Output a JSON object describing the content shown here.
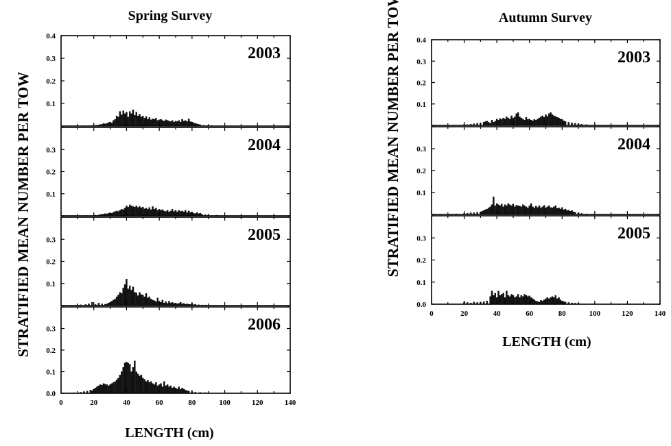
{
  "figure": {
    "ylabel": "STRATIFIED MEAN NUMBER PER TOW",
    "xlabel": "LENGTH (cm)"
  },
  "chart_data": [
    {
      "type": "bar",
      "title": "Spring Survey",
      "xlabel": "LENGTH (cm)",
      "ylabel": "STRATIFIED MEAN NUMBER PER TOW",
      "xlim": [
        0,
        140
      ],
      "ylim": [
        0,
        0.4
      ],
      "xticks": [
        "0",
        "20",
        "40",
        "60",
        "80",
        "100",
        "120",
        "140"
      ],
      "yticks": [
        "0.0",
        "0.1",
        "0.2",
        "0.3",
        "0.4"
      ],
      "panels": [
        {
          "year": "2003",
          "x": [
            10,
            14,
            17,
            19,
            21,
            22,
            23,
            24,
            25,
            26,
            27,
            28,
            29,
            30,
            31,
            32,
            33,
            34,
            35,
            36,
            37,
            38,
            39,
            40,
            41,
            42,
            43,
            44,
            45,
            46,
            47,
            48,
            49,
            50,
            51,
            52,
            53,
            54,
            55,
            56,
            57,
            58,
            59,
            60,
            61,
            62,
            63,
            64,
            65,
            66,
            67,
            68,
            69,
            70,
            71,
            72,
            73,
            74,
            75,
            76,
            77,
            78,
            79,
            80,
            81,
            82,
            83,
            84,
            85,
            87,
            89,
            92
          ],
          "values": [
            0.002,
            0.002,
            0.002,
            0.003,
            0.004,
            0.004,
            0.005,
            0.007,
            0.008,
            0.012,
            0.01,
            0.012,
            0.016,
            0.018,
            0.014,
            0.025,
            0.03,
            0.045,
            0.04,
            0.065,
            0.05,
            0.068,
            0.055,
            0.062,
            0.04,
            0.065,
            0.055,
            0.072,
            0.048,
            0.062,
            0.045,
            0.052,
            0.04,
            0.045,
            0.035,
            0.042,
            0.03,
            0.038,
            0.028,
            0.032,
            0.03,
            0.035,
            0.025,
            0.028,
            0.03,
            0.025,
            0.022,
            0.028,
            0.025,
            0.022,
            0.02,
            0.025,
            0.018,
            0.022,
            0.02,
            0.025,
            0.018,
            0.03,
            0.022,
            0.025,
            0.02,
            0.032,
            0.02,
            0.018,
            0.015,
            0.012,
            0.01,
            0.008,
            0.006,
            0.004,
            0.003,
            0.002
          ]
        },
        {
          "year": "2004",
          "x": [
            15,
            21,
            23,
            24,
            25,
            26,
            27,
            28,
            29,
            30,
            31,
            32,
            33,
            34,
            35,
            36,
            37,
            38,
            39,
            40,
            41,
            42,
            43,
            44,
            45,
            46,
            47,
            48,
            49,
            50,
            51,
            52,
            53,
            54,
            55,
            56,
            57,
            58,
            59,
            60,
            61,
            62,
            63,
            64,
            65,
            66,
            67,
            68,
            69,
            70,
            71,
            72,
            73,
            74,
            75,
            76,
            77,
            78,
            79,
            80,
            81,
            82,
            83,
            84,
            85,
            86,
            88,
            90,
            95
          ],
          "values": [
            0.002,
            0.003,
            0.004,
            0.006,
            0.007,
            0.008,
            0.01,
            0.009,
            0.012,
            0.014,
            0.012,
            0.016,
            0.02,
            0.022,
            0.02,
            0.025,
            0.03,
            0.028,
            0.035,
            0.045,
            0.04,
            0.05,
            0.045,
            0.042,
            0.04,
            0.045,
            0.038,
            0.042,
            0.036,
            0.04,
            0.032,
            0.035,
            0.03,
            0.038,
            0.028,
            0.042,
            0.03,
            0.035,
            0.025,
            0.03,
            0.025,
            0.028,
            0.022,
            0.02,
            0.025,
            0.018,
            0.022,
            0.03,
            0.02,
            0.025,
            0.018,
            0.025,
            0.02,
            0.022,
            0.018,
            0.025,
            0.015,
            0.022,
            0.015,
            0.018,
            0.012,
            0.01,
            0.015,
            0.01,
            0.012,
            0.008,
            0.005,
            0.004,
            0.003
          ]
        },
        {
          "year": "2005",
          "x": [
            6,
            10,
            12,
            15,
            17,
            19,
            21,
            23,
            25,
            27,
            28,
            29,
            30,
            31,
            32,
            33,
            34,
            35,
            36,
            37,
            38,
            39,
            40,
            41,
            42,
            43,
            44,
            45,
            46,
            47,
            48,
            49,
            50,
            51,
            52,
            53,
            54,
            55,
            56,
            57,
            58,
            59,
            60,
            61,
            62,
            63,
            64,
            65,
            66,
            67,
            68,
            69,
            70,
            71,
            72,
            73,
            74,
            75,
            76,
            77,
            78,
            79,
            80,
            81,
            82,
            84,
            86,
            88,
            90,
            95
          ],
          "values": [
            0.002,
            0.003,
            0.004,
            0.005,
            0.008,
            0.015,
            0.005,
            0.012,
            0.008,
            0.006,
            0.008,
            0.012,
            0.015,
            0.02,
            0.025,
            0.03,
            0.04,
            0.048,
            0.06,
            0.055,
            0.08,
            0.095,
            0.12,
            0.075,
            0.09,
            0.07,
            0.085,
            0.06,
            0.058,
            0.045,
            0.06,
            0.05,
            0.048,
            0.04,
            0.055,
            0.035,
            0.04,
            0.03,
            0.025,
            0.022,
            0.018,
            0.035,
            0.02,
            0.015,
            0.025,
            0.012,
            0.018,
            0.01,
            0.02,
            0.012,
            0.015,
            0.01,
            0.012,
            0.008,
            0.01,
            0.015,
            0.008,
            0.01,
            0.006,
            0.008,
            0.006,
            0.005,
            0.01,
            0.004,
            0.006,
            0.004,
            0.003,
            0.003,
            0.002,
            0.002
          ]
        },
        {
          "year": "2006",
          "x": [
            5,
            8,
            12,
            14,
            16,
            18,
            19,
            20,
            21,
            22,
            23,
            24,
            25,
            26,
            27,
            28,
            29,
            30,
            31,
            32,
            33,
            34,
            35,
            36,
            37,
            38,
            39,
            40,
            41,
            42,
            43,
            44,
            45,
            46,
            47,
            48,
            49,
            50,
            51,
            52,
            53,
            54,
            55,
            56,
            57,
            58,
            59,
            60,
            61,
            62,
            63,
            64,
            65,
            66,
            67,
            68,
            69,
            70,
            71,
            72,
            73,
            74,
            75,
            76,
            77,
            78,
            80,
            82,
            85,
            88
          ],
          "values": [
            0.002,
            0.003,
            0.005,
            0.008,
            0.01,
            0.015,
            0.012,
            0.02,
            0.025,
            0.03,
            0.035,
            0.04,
            0.038,
            0.045,
            0.042,
            0.04,
            0.035,
            0.04,
            0.045,
            0.05,
            0.055,
            0.062,
            0.07,
            0.085,
            0.1,
            0.12,
            0.14,
            0.145,
            0.14,
            0.135,
            0.1,
            0.12,
            0.15,
            0.1,
            0.09,
            0.08,
            0.085,
            0.07,
            0.065,
            0.055,
            0.06,
            0.05,
            0.055,
            0.045,
            0.04,
            0.05,
            0.035,
            0.04,
            0.045,
            0.03,
            0.055,
            0.035,
            0.04,
            0.03,
            0.035,
            0.025,
            0.03,
            0.025,
            0.02,
            0.03,
            0.018,
            0.025,
            0.02,
            0.015,
            0.012,
            0.01,
            0.008,
            0.005,
            0.004,
            0.003
          ]
        }
      ]
    },
    {
      "type": "bar",
      "title": "Autumn Survey",
      "xlabel": "LENGTH (cm)",
      "ylabel": "STRATIFIED MEAN NUMBER PER TOW",
      "xlim": [
        0,
        140
      ],
      "ylim": [
        0,
        0.4
      ],
      "xticks": [
        "0",
        "20",
        "40",
        "60",
        "80",
        "100",
        "120",
        "140"
      ],
      "yticks": [
        "0.0",
        "0.1",
        "0.2",
        "0.3",
        "0.4"
      ],
      "panels": [
        {
          "year": "2003",
          "x": [
            20,
            22,
            24,
            26,
            28,
            30,
            32,
            33,
            34,
            35,
            36,
            37,
            38,
            39,
            40,
            41,
            42,
            43,
            44,
            45,
            46,
            47,
            48,
            49,
            50,
            51,
            52,
            53,
            54,
            55,
            56,
            57,
            58,
            59,
            60,
            61,
            62,
            63,
            64,
            65,
            66,
            67,
            68,
            69,
            70,
            71,
            72,
            73,
            74,
            75,
            76,
            77,
            78,
            79,
            80,
            81,
            82,
            84,
            86,
            88,
            90,
            92,
            95,
            100
          ],
          "values": [
            0.005,
            0.004,
            0.006,
            0.008,
            0.01,
            0.012,
            0.015,
            0.018,
            0.02,
            0.015,
            0.01,
            0.025,
            0.015,
            0.02,
            0.03,
            0.025,
            0.032,
            0.028,
            0.035,
            0.03,
            0.04,
            0.035,
            0.03,
            0.045,
            0.035,
            0.04,
            0.055,
            0.06,
            0.04,
            0.035,
            0.03,
            0.025,
            0.038,
            0.028,
            0.03,
            0.025,
            0.022,
            0.028,
            0.025,
            0.03,
            0.035,
            0.04,
            0.045,
            0.038,
            0.05,
            0.042,
            0.055,
            0.06,
            0.05,
            0.045,
            0.042,
            0.038,
            0.035,
            0.03,
            0.028,
            0.022,
            0.018,
            0.015,
            0.012,
            0.01,
            0.008,
            0.006,
            0.004,
            0.003
          ]
        },
        {
          "year": "2004",
          "x": [
            15,
            20,
            22,
            24,
            26,
            28,
            30,
            31,
            32,
            33,
            34,
            35,
            36,
            37,
            38,
            39,
            40,
            41,
            42,
            43,
            44,
            45,
            46,
            47,
            48,
            49,
            50,
            51,
            52,
            53,
            54,
            55,
            56,
            57,
            58,
            59,
            60,
            61,
            62,
            63,
            64,
            65,
            66,
            67,
            68,
            69,
            70,
            71,
            72,
            73,
            74,
            75,
            76,
            77,
            78,
            79,
            80,
            81,
            82,
            83,
            84,
            85,
            86,
            87,
            88,
            90,
            92,
            95
          ],
          "values": [
            0.003,
            0.005,
            0.006,
            0.008,
            0.008,
            0.01,
            0.012,
            0.015,
            0.018,
            0.022,
            0.025,
            0.03,
            0.035,
            0.045,
            0.08,
            0.04,
            0.05,
            0.045,
            0.04,
            0.048,
            0.035,
            0.045,
            0.04,
            0.05,
            0.045,
            0.04,
            0.048,
            0.035,
            0.042,
            0.04,
            0.038,
            0.035,
            0.045,
            0.04,
            0.035,
            0.03,
            0.04,
            0.05,
            0.035,
            0.03,
            0.038,
            0.032,
            0.04,
            0.03,
            0.035,
            0.042,
            0.03,
            0.035,
            0.04,
            0.032,
            0.03,
            0.035,
            0.04,
            0.028,
            0.03,
            0.025,
            0.032,
            0.022,
            0.025,
            0.018,
            0.02,
            0.015,
            0.018,
            0.012,
            0.01,
            0.008,
            0.005,
            0.003
          ]
        },
        {
          "year": "2005",
          "x": [
            20,
            22,
            24,
            26,
            28,
            30,
            32,
            34,
            36,
            37,
            38,
            39,
            40,
            41,
            42,
            43,
            44,
            45,
            46,
            47,
            48,
            49,
            50,
            51,
            52,
            53,
            54,
            55,
            56,
            57,
            58,
            59,
            60,
            61,
            62,
            63,
            64,
            65,
            66,
            67,
            68,
            69,
            70,
            71,
            72,
            73,
            74,
            75,
            76,
            77,
            78,
            79,
            80,
            81,
            82,
            84,
            86,
            88,
            90
          ],
          "values": [
            0.01,
            0.008,
            0.006,
            0.01,
            0.008,
            0.01,
            0.012,
            0.015,
            0.035,
            0.06,
            0.04,
            0.05,
            0.03,
            0.06,
            0.04,
            0.045,
            0.05,
            0.03,
            0.06,
            0.04,
            0.035,
            0.045,
            0.04,
            0.03,
            0.035,
            0.045,
            0.03,
            0.04,
            0.035,
            0.045,
            0.04,
            0.035,
            0.038,
            0.03,
            0.025,
            0.02,
            0.015,
            0.012,
            0.01,
            0.018,
            0.015,
            0.02,
            0.025,
            0.03,
            0.025,
            0.03,
            0.035,
            0.03,
            0.04,
            0.025,
            0.03,
            0.02,
            0.015,
            0.012,
            0.01,
            0.008,
            0.006,
            0.005,
            0.004
          ]
        }
      ]
    }
  ]
}
